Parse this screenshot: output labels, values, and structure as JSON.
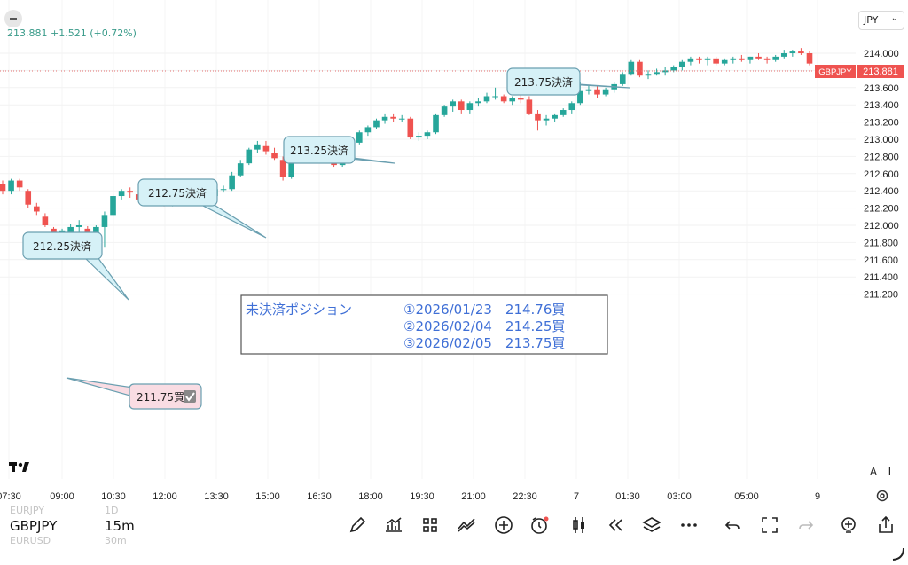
{
  "header": {
    "price_change": "213.881 +1.521 (+0.72%)",
    "currency_label": "JPY"
  },
  "price_axis": {
    "labels": [
      "214.000",
      "213.800",
      "213.600",
      "213.400",
      "213.200",
      "213.000",
      "212.800",
      "212.600",
      "212.400",
      "212.200",
      "212.000",
      "211.800",
      "211.600",
      "211.400",
      "211.200"
    ],
    "current_symbol": "GBPJPY",
    "current_price": "213.881"
  },
  "time_axis": {
    "labels": [
      "07:30",
      "09:00",
      "10:30",
      "12:00",
      "13:30",
      "15:00",
      "16:30",
      "18:00",
      "19:30",
      "21:00",
      "22:30",
      "7",
      "01:30",
      "03:00",
      "05:00",
      "9"
    ]
  },
  "annotations": {
    "callouts": [
      "212.25決済",
      "212.75決済",
      "213.25決済",
      "213.75決済"
    ],
    "buy_label": "211.75買",
    "positions_title": "未決済ポジション",
    "positions": [
      "①2026/01/23　214.76買",
      "②2026/02/04　214.25買",
      "③2026/02/05　213.75買"
    ]
  },
  "scale_buttons": {
    "auto": "A",
    "log": "L"
  },
  "bottom": {
    "symbol_prev": "EURJPY",
    "interval_prev": "1D",
    "symbol": "GBPJPY",
    "interval": "15m",
    "symbol_next": "EURUSD",
    "interval_next": "30m"
  },
  "colors": {
    "up": "#26a69a",
    "down": "#ef5350",
    "callout_fill": "#d6f1f7",
    "callout_border": "#6a9fb0",
    "buy_fill": "#f9dce3",
    "position_text": "#3f6fd6"
  },
  "icons": [
    "pen-icon",
    "indicators-icon",
    "grid-icon",
    "strategy-icon",
    "plus-icon",
    "alarm-icon",
    "candle-type-icon",
    "replay-icon",
    "layers-icon",
    "more-icon",
    "undo-icon",
    "fullscreen-icon",
    "redo-icon",
    "alert-icon",
    "share-icon"
  ],
  "chart_data": {
    "type": "candlestick",
    "y_range": [
      211.1,
      214.15
    ],
    "candles": [
      [
        212.48,
        212.52,
        212.36,
        212.4
      ],
      [
        212.4,
        212.54,
        212.36,
        212.52
      ],
      [
        212.52,
        212.54,
        212.4,
        212.44
      ],
      [
        212.4,
        212.42,
        212.2,
        212.24
      ],
      [
        212.22,
        212.26,
        212.12,
        212.16
      ],
      [
        212.1,
        212.14,
        211.98,
        212.0
      ],
      [
        211.96,
        211.98,
        211.66,
        211.74
      ],
      [
        211.76,
        211.96,
        211.62,
        211.94
      ],
      [
        211.92,
        212.02,
        211.86,
        211.98
      ],
      [
        211.98,
        212.06,
        211.92,
        212.0
      ],
      [
        211.96,
        211.99,
        211.86,
        211.9
      ],
      [
        211.84,
        212.0,
        211.82,
        211.98
      ],
      [
        211.98,
        212.16,
        211.74,
        212.12
      ],
      [
        212.12,
        212.36,
        212.1,
        212.34
      ],
      [
        212.34,
        212.42,
        212.3,
        212.4
      ],
      [
        212.4,
        212.44,
        212.32,
        212.38
      ],
      [
        212.36,
        212.4,
        212.28,
        212.3
      ],
      [
        212.3,
        212.34,
        212.26,
        212.32
      ],
      [
        212.32,
        212.36,
        212.28,
        212.34
      ],
      [
        212.34,
        212.36,
        212.22,
        212.26
      ],
      [
        212.26,
        212.34,
        212.22,
        212.32
      ],
      [
        212.32,
        212.36,
        212.28,
        212.32
      ],
      [
        212.32,
        212.36,
        212.3,
        212.34
      ],
      [
        212.34,
        212.42,
        212.3,
        212.38
      ],
      [
        212.36,
        212.4,
        212.3,
        212.34
      ],
      [
        212.34,
        212.44,
        212.32,
        212.42
      ],
      [
        212.42,
        212.46,
        212.38,
        212.42
      ],
      [
        212.42,
        212.62,
        212.4,
        212.58
      ],
      [
        212.58,
        212.76,
        212.56,
        212.72
      ],
      [
        212.72,
        212.9,
        212.7,
        212.88
      ],
      [
        212.88,
        212.98,
        212.84,
        212.94
      ],
      [
        212.92,
        212.98,
        212.82,
        212.86
      ],
      [
        212.84,
        212.9,
        212.76,
        212.78
      ],
      [
        212.76,
        212.8,
        212.52,
        212.56
      ],
      [
        212.56,
        212.82,
        212.54,
        212.8
      ],
      [
        212.8,
        212.86,
        212.76,
        212.78
      ],
      [
        212.76,
        212.84,
        212.72,
        212.82
      ],
      [
        212.82,
        212.86,
        212.74,
        212.8
      ],
      [
        212.8,
        212.88,
        212.76,
        212.82
      ],
      [
        212.8,
        212.84,
        212.68,
        212.7
      ],
      [
        212.7,
        212.8,
        212.68,
        212.76
      ],
      [
        212.76,
        212.98,
        212.74,
        212.96
      ],
      [
        212.96,
        213.1,
        212.94,
        213.08
      ],
      [
        213.08,
        213.16,
        213.04,
        213.14
      ],
      [
        213.14,
        213.24,
        213.12,
        213.22
      ],
      [
        213.22,
        213.3,
        213.18,
        213.26
      ],
      [
        213.26,
        213.3,
        213.2,
        213.24
      ],
      [
        213.24,
        213.28,
        213.2,
        213.24
      ],
      [
        213.24,
        213.26,
        213.0,
        213.02
      ],
      [
        213.02,
        213.08,
        212.98,
        213.04
      ],
      [
        213.04,
        213.1,
        213.0,
        213.08
      ],
      [
        213.08,
        213.3,
        213.06,
        213.28
      ],
      [
        213.28,
        213.4,
        213.26,
        213.38
      ],
      [
        213.38,
        213.46,
        213.32,
        213.44
      ],
      [
        213.44,
        213.46,
        213.3,
        213.34
      ],
      [
        213.34,
        213.44,
        213.3,
        213.42
      ],
      [
        213.42,
        213.48,
        213.38,
        213.44
      ],
      [
        213.44,
        213.54,
        213.42,
        213.5
      ],
      [
        213.5,
        213.6,
        213.46,
        213.5
      ],
      [
        213.5,
        213.52,
        213.42,
        213.44
      ],
      [
        213.44,
        213.5,
        213.4,
        213.48
      ],
      [
        213.48,
        213.52,
        213.42,
        213.46
      ],
      [
        213.46,
        213.5,
        213.28,
        213.3
      ],
      [
        213.3,
        213.34,
        213.1,
        213.22
      ],
      [
        213.22,
        213.28,
        213.16,
        213.24
      ],
      [
        213.24,
        213.3,
        213.2,
        213.28
      ],
      [
        213.28,
        213.36,
        213.26,
        213.34
      ],
      [
        213.34,
        213.44,
        213.3,
        213.42
      ],
      [
        213.42,
        213.66,
        213.4,
        213.56
      ],
      [
        213.56,
        213.62,
        213.52,
        213.58
      ],
      [
        213.58,
        213.62,
        213.48,
        213.52
      ],
      [
        213.52,
        213.6,
        213.5,
        213.58
      ],
      [
        213.58,
        213.66,
        213.54,
        213.64
      ],
      [
        213.64,
        213.78,
        213.62,
        213.76
      ],
      [
        213.76,
        213.92,
        213.74,
        213.9
      ],
      [
        213.9,
        213.92,
        213.72,
        213.74
      ],
      [
        213.74,
        213.8,
        213.7,
        213.76
      ],
      [
        213.76,
        213.82,
        213.74,
        213.78
      ],
      [
        213.78,
        213.84,
        213.74,
        213.8
      ],
      [
        213.8,
        213.86,
        213.78,
        213.84
      ],
      [
        213.84,
        213.92,
        213.8,
        213.9
      ],
      [
        213.9,
        213.96,
        213.86,
        213.94
      ],
      [
        213.94,
        213.96,
        213.88,
        213.92
      ],
      [
        213.92,
        213.96,
        213.86,
        213.94
      ],
      [
        213.94,
        213.96,
        213.86,
        213.88
      ],
      [
        213.88,
        213.94,
        213.86,
        213.92
      ],
      [
        213.92,
        213.96,
        213.88,
        213.94
      ],
      [
        213.94,
        213.98,
        213.9,
        213.92
      ],
      [
        213.92,
        213.96,
        213.88,
        213.96
      ],
      [
        213.96,
        214.0,
        213.92,
        213.94
      ],
      [
        213.94,
        213.96,
        213.88,
        213.92
      ],
      [
        213.92,
        213.98,
        213.9,
        213.96
      ],
      [
        213.96,
        214.04,
        213.94,
        214.0
      ],
      [
        214.0,
        214.04,
        213.96,
        214.02
      ],
      [
        214.02,
        214.06,
        213.98,
        214.0
      ],
      [
        214.0,
        214.02,
        213.86,
        213.88
      ]
    ]
  }
}
